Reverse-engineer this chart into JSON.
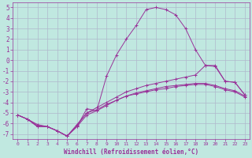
{
  "xlabel": "Windchill (Refroidissement éolien,°C)",
  "xlim": [
    -0.5,
    23.5
  ],
  "ylim": [
    -7.5,
    5.5
  ],
  "yticks": [
    -7,
    -6,
    -5,
    -4,
    -3,
    -2,
    -1,
    0,
    1,
    2,
    3,
    4,
    5
  ],
  "xticks": [
    0,
    1,
    2,
    3,
    4,
    5,
    6,
    7,
    8,
    9,
    10,
    11,
    12,
    13,
    14,
    15,
    16,
    17,
    18,
    19,
    20,
    21,
    22,
    23
  ],
  "bg_color": "#c0e8e0",
  "line_color": "#993399",
  "grid_color": "#b0b8cc",
  "lines": [
    {
      "x": [
        0,
        1,
        2,
        3,
        4,
        5,
        6,
        7,
        8,
        9,
        10,
        11,
        12,
        13,
        14,
        15,
        16,
        17,
        18,
        19,
        20,
        21,
        22,
        23
      ],
      "y": [
        -5.2,
        -5.6,
        -6.3,
        -6.3,
        -6.7,
        -7.2,
        -6.3,
        -4.6,
        -4.8,
        -1.5,
        0.5,
        2.0,
        3.3,
        4.8,
        5.0,
        4.8,
        4.3,
        3.0,
        1.0,
        -0.5,
        -0.5,
        -2.0,
        -2.1,
        -3.3
      ]
    },
    {
      "x": [
        0,
        1,
        2,
        3,
        4,
        5,
        6,
        7,
        8,
        9,
        10,
        11,
        12,
        13,
        14,
        15,
        16,
        17,
        18,
        19,
        20,
        21,
        22,
        23
      ],
      "y": [
        -5.2,
        -5.6,
        -6.3,
        -6.3,
        -6.7,
        -7.2,
        -6.3,
        -5.2,
        -4.8,
        -4.3,
        -3.8,
        -3.4,
        -3.2,
        -3.0,
        -2.8,
        -2.7,
        -2.5,
        -2.4,
        -2.3,
        -2.3,
        -2.5,
        -2.8,
        -3.0,
        -3.5
      ]
    },
    {
      "x": [
        0,
        1,
        2,
        3,
        4,
        5,
        6,
        7,
        8,
        9,
        10,
        11,
        12,
        13,
        14,
        15,
        16,
        17,
        18,
        19,
        20,
        21,
        22,
        23
      ],
      "y": [
        -5.2,
        -5.6,
        -6.2,
        -6.3,
        -6.7,
        -7.2,
        -6.2,
        -5.0,
        -4.7,
        -4.2,
        -3.8,
        -3.4,
        -3.1,
        -2.9,
        -2.7,
        -2.5,
        -2.4,
        -2.3,
        -2.2,
        -2.2,
        -2.4,
        -2.7,
        -2.9,
        -3.4
      ]
    },
    {
      "x": [
        0,
        1,
        2,
        3,
        4,
        5,
        6,
        7,
        8,
        9,
        10,
        11,
        12,
        13,
        14,
        15,
        16,
        17,
        18,
        19,
        20,
        21,
        22,
        23
      ],
      "y": [
        -5.2,
        -5.6,
        -6.1,
        -6.3,
        -6.7,
        -7.2,
        -6.1,
        -5.0,
        -4.5,
        -4.0,
        -3.5,
        -3.0,
        -2.7,
        -2.4,
        -2.2,
        -2.0,
        -1.8,
        -1.6,
        -1.4,
        -0.5,
        -0.6,
        -2.0,
        -2.1,
        -3.3
      ]
    }
  ]
}
